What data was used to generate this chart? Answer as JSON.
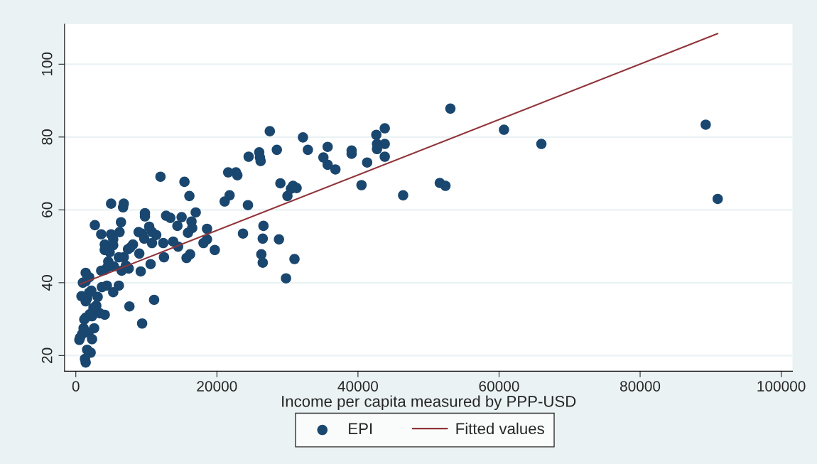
{
  "chart_data": {
    "type": "scatter",
    "xlabel": "Income per capita measured by PPP-USD",
    "xlim": [
      -1600,
      101600
    ],
    "ylim": [
      15.7,
      111
    ],
    "xticks": [
      0,
      20000,
      40000,
      60000,
      80000,
      100000
    ],
    "yticks": [
      20,
      40,
      60,
      80,
      100
    ],
    "grid": "y",
    "legend": "bottom",
    "series": [
      {
        "name": "EPI",
        "marker": "circle",
        "color": "#1a476f",
        "x": [
          53100,
          60700,
          66000,
          89300,
          91000,
          46400,
          51600,
          52400,
          43800,
          42600,
          42700,
          43800,
          42700,
          43800,
          41300,
          40500,
          39100,
          39100,
          36800,
          35700,
          35700,
          35100,
          32200,
          32900,
          27500,
          28500,
          29000,
          30800,
          31300,
          30500,
          30000,
          28800,
          29800,
          31000,
          26600,
          26500,
          26300,
          26500,
          23700,
          24400,
          24500,
          26000,
          26100,
          26200,
          22700,
          22900,
          21600,
          21800,
          21100,
          19700,
          18600,
          18600,
          18100,
          17000,
          16400,
          16500,
          16200,
          15700,
          15900,
          16100,
          15400,
          15000,
          13400,
          12800,
          14400,
          14500,
          13800,
          12000,
          12400,
          12500,
          11400,
          10800,
          10800,
          10600,
          11100,
          10400,
          9800,
          9800,
          9400,
          9700,
          9400,
          9200,
          9000,
          8900,
          7500,
          7700,
          8100,
          7400,
          7600,
          6500,
          7100,
          6800,
          6700,
          6400,
          6200,
          6100,
          6800,
          6100,
          5000,
          5300,
          5000,
          5300,
          4800,
          5400,
          5300,
          4600,
          4500,
          4100,
          4100,
          4100,
          4400,
          3600,
          3600,
          3700,
          4100,
          2900,
          2700,
          3100,
          3400,
          2200,
          2500,
          2600,
          2300,
          1400,
          1900,
          1400,
          1000,
          1900,
          1400,
          1400,
          2000,
          1100,
          1800,
          2300,
          600,
          500,
          1200,
          900,
          1600,
          2100,
          1300,
          1400,
          800,
          1600
        ],
        "values": [
          87.8,
          82.0,
          78.1,
          83.4,
          63.0,
          64.0,
          67.4,
          66.6,
          82.4,
          80.6,
          78.1,
          78.1,
          76.7,
          74.6,
          73.0,
          66.8,
          76.3,
          75.4,
          71.1,
          77.3,
          72.4,
          74.4,
          79.9,
          76.5,
          81.6,
          76.5,
          67.3,
          66.6,
          66.0,
          65.8,
          63.8,
          51.9,
          41.2,
          46.5,
          55.6,
          52.1,
          47.8,
          45.5,
          53.5,
          61.3,
          74.6,
          75.8,
          74.4,
          73.4,
          70.3,
          69.5,
          70.3,
          64.0,
          62.3,
          49.0,
          51.9,
          54.8,
          50.9,
          59.3,
          56.8,
          55.0,
          47.8,
          46.8,
          53.7,
          63.8,
          67.7,
          58.0,
          57.8,
          58.4,
          55.6,
          49.9,
          51.3,
          69.1,
          50.9,
          47.0,
          53.1,
          53.9,
          50.9,
          45.1,
          35.3,
          55.4,
          59.1,
          58.2,
          53.5,
          52.1,
          28.8,
          43.1,
          48.0,
          53.9,
          43.9,
          49.6,
          50.5,
          49.2,
          33.5,
          43.3,
          44.7,
          61.7,
          60.7,
          56.6,
          53.9,
          47.0,
          47.0,
          39.2,
          61.7,
          50.3,
          53.3,
          51.9,
          48.4,
          44.5,
          37.4,
          45.8,
          44.3,
          50.5,
          49.0,
          43.5,
          39.2,
          53.3,
          43.3,
          38.8,
          31.2,
          33.7,
          55.8,
          36.1,
          31.6,
          37.8,
          33.1,
          27.5,
          30.8,
          42.7,
          41.5,
          40.4,
          40.0,
          37.3,
          34.9,
          30.4,
          31.4,
          27.5,
          26.3,
          24.5,
          24.9,
          24.3,
          29.9,
          25.9,
          21.6,
          20.8,
          19.1,
          18.1,
          36.3,
          35.7
        ]
      },
      {
        "name": "Fitted values",
        "type": "line",
        "color": "#90353b",
        "x": [
          600,
          91000
        ],
        "values": [
          39.6,
          108.4
        ]
      }
    ]
  }
}
